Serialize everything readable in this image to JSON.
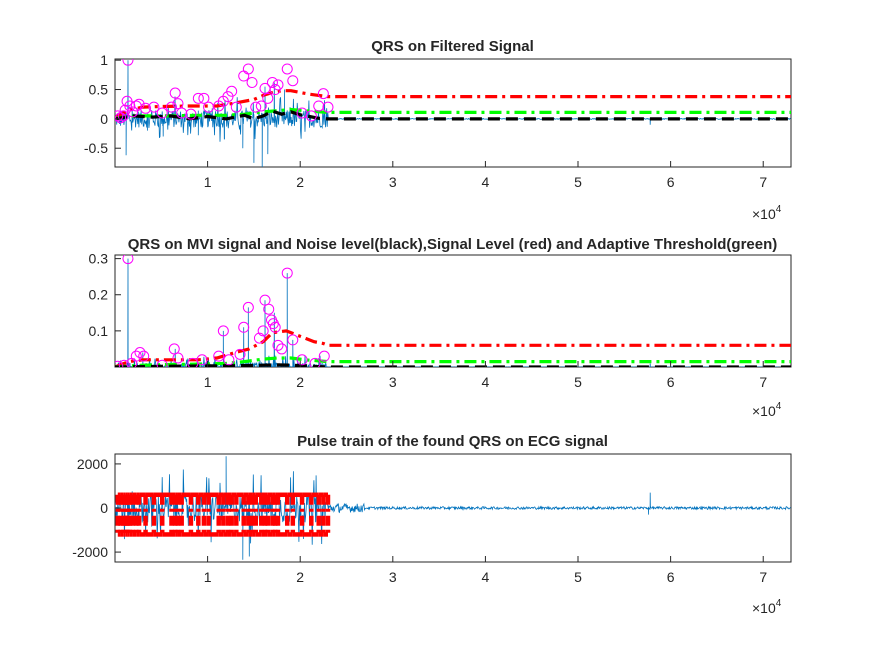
{
  "chart_data": [
    {
      "type": "line",
      "title": "QRS on Filtered Signal",
      "xlim": [
        0,
        73000
      ],
      "ylim": [
        -0.82,
        1.02
      ],
      "x_ticks": [
        1,
        2,
        3,
        4,
        5,
        6,
        7
      ],
      "x_tick_labels": [
        "1",
        "2",
        "3",
        "4",
        "5",
        "6",
        "7"
      ],
      "x_multiplier": {
        "base": "×10",
        "exponent": "4"
      },
      "y_ticks": [
        -0.5,
        0,
        0.5,
        1
      ],
      "y_tick_labels": [
        "-0.5",
        "0",
        "0.5",
        "1"
      ],
      "grid": false,
      "signal": {
        "color": "#0072BD",
        "active_range": [
          0,
          23000
        ],
        "amplitude": 0.25,
        "baseline": 0.0,
        "spikes": [
          [
            1200,
            -0.62
          ],
          [
            1400,
            1.0
          ],
          [
            3500,
            -0.2
          ],
          [
            5200,
            -0.3
          ],
          [
            9000,
            -0.28
          ],
          [
            11800,
            -0.35
          ],
          [
            13800,
            -0.5
          ],
          [
            15000,
            -0.75
          ],
          [
            15900,
            -0.82
          ],
          [
            16200,
            0.55
          ],
          [
            16500,
            -0.6
          ],
          [
            17200,
            0.62
          ],
          [
            18300,
            0.5
          ],
          [
            21000,
            -0.15
          ],
          [
            57800,
            -0.1
          ]
        ]
      },
      "markers": {
        "color": "#FF00FF",
        "shape": "circle",
        "points": [
          [
            300,
            0.05
          ],
          [
            600,
            0.02
          ],
          [
            900,
            0.05
          ],
          [
            1100,
            0.15
          ],
          [
            1300,
            0.3
          ],
          [
            1400,
            1.0
          ],
          [
            1600,
            0.22
          ],
          [
            1900,
            0.12
          ],
          [
            2300,
            0.22
          ],
          [
            2600,
            0.25
          ],
          [
            3300,
            0.18
          ],
          [
            4200,
            0.2
          ],
          [
            5100,
            0.1
          ],
          [
            6100,
            0.2
          ],
          [
            6500,
            0.44
          ],
          [
            6800,
            0.26
          ],
          [
            7200,
            0.1
          ],
          [
            8200,
            0.08
          ],
          [
            9000,
            0.35
          ],
          [
            9600,
            0.35
          ],
          [
            10100,
            0.2
          ],
          [
            11200,
            0.22
          ],
          [
            11700,
            0.3
          ],
          [
            12200,
            0.38
          ],
          [
            12600,
            0.47
          ],
          [
            13100,
            0.2
          ],
          [
            13900,
            0.73
          ],
          [
            14400,
            0.85
          ],
          [
            14800,
            0.62
          ],
          [
            15200,
            0.2
          ],
          [
            15800,
            0.22
          ],
          [
            16200,
            0.52
          ],
          [
            16500,
            0.35
          ],
          [
            17000,
            0.62
          ],
          [
            17300,
            0.5
          ],
          [
            17600,
            0.58
          ],
          [
            18600,
            0.85
          ],
          [
            19200,
            0.65
          ],
          [
            20200,
            0.1
          ],
          [
            21200,
            0.05
          ],
          [
            22000,
            0.22
          ],
          [
            22500,
            0.43
          ],
          [
            23000,
            0.2
          ]
        ]
      },
      "series": [
        {
          "name": "",
          "color": "#FF0000",
          "style": "dash-dot",
          "x": [
            0,
            1500,
            3000,
            5000,
            8000,
            11000,
            13000,
            15000,
            16000,
            17000,
            18000,
            19000,
            20000,
            21000,
            22000,
            23000,
            73000
          ],
          "y": [
            0.02,
            0.15,
            0.2,
            0.21,
            0.22,
            0.22,
            0.27,
            0.33,
            0.4,
            0.45,
            0.48,
            0.48,
            0.45,
            0.42,
            0.4,
            0.38,
            0.38
          ]
        },
        {
          "name": "",
          "color": "#00FF00",
          "style": "dash-dot",
          "x": [
            0,
            1500,
            3000,
            6000,
            9000,
            12000,
            14000,
            16000,
            17500,
            19000,
            20500,
            22000,
            23000,
            73000
          ],
          "y": [
            0.01,
            0.04,
            0.05,
            0.05,
            0.06,
            0.06,
            0.08,
            0.12,
            0.14,
            0.16,
            0.14,
            0.12,
            0.11,
            0.11
          ]
        },
        {
          "name": "",
          "color": "#000000",
          "style": "dashed",
          "x": [
            0,
            2000,
            4000,
            6000,
            8000,
            10000,
            12000,
            14000,
            15000,
            16000,
            17000,
            18000,
            19000,
            20000,
            21000,
            22000,
            23000,
            73000
          ],
          "y": [
            0.0,
            0.05,
            0.03,
            0.05,
            0.0,
            0.04,
            0.0,
            0.06,
            0.0,
            0.05,
            0.13,
            0.08,
            0.12,
            0.07,
            0.04,
            0.01,
            0.0,
            0.0
          ]
        }
      ]
    },
    {
      "type": "line",
      "title": "QRS on MVI signal and Noise level(black),Signal Level (red) and Adaptive Threshold(green)",
      "xlim": [
        0,
        73000
      ],
      "ylim": [
        0,
        0.31
      ],
      "x_ticks": [
        1,
        2,
        3,
        4,
        5,
        6,
        7
      ],
      "x_tick_labels": [
        "1",
        "2",
        "3",
        "4",
        "5",
        "6",
        "7"
      ],
      "x_multiplier": {
        "base": "×10",
        "exponent": "4"
      },
      "y_ticks": [
        0.1,
        0.2,
        0.3
      ],
      "y_tick_labels": [
        "0.1",
        "0.2",
        "0.3"
      ],
      "grid": false,
      "signal": {
        "color": "#0072BD",
        "active_range": [
          0,
          23000
        ],
        "amplitude": 0.02,
        "baseline": 0.0,
        "spikes": [
          [
            1400,
            0.3
          ],
          [
            3000,
            0.04
          ],
          [
            6500,
            0.05
          ],
          [
            11700,
            0.1
          ],
          [
            13900,
            0.11
          ],
          [
            14400,
            0.165
          ],
          [
            16200,
            0.185
          ],
          [
            17200,
            0.15
          ],
          [
            18600,
            0.26
          ],
          [
            19200,
            0.075
          ],
          [
            57800,
            0.01
          ]
        ]
      },
      "markers": {
        "color": "#FF00FF",
        "shape": "circle",
        "points": [
          [
            300,
            0.002
          ],
          [
            1000,
            0.005
          ],
          [
            1400,
            0.3
          ],
          [
            1800,
            0.01
          ],
          [
            2300,
            0.03
          ],
          [
            2700,
            0.04
          ],
          [
            3100,
            0.03
          ],
          [
            5100,
            0.005
          ],
          [
            6400,
            0.05
          ],
          [
            6800,
            0.025
          ],
          [
            8400,
            0.01
          ],
          [
            9400,
            0.02
          ],
          [
            11200,
            0.03
          ],
          [
            11700,
            0.1
          ],
          [
            12300,
            0.02
          ],
          [
            13500,
            0.035
          ],
          [
            13900,
            0.11
          ],
          [
            14400,
            0.165
          ],
          [
            15600,
            0.08
          ],
          [
            16000,
            0.1
          ],
          [
            16200,
            0.185
          ],
          [
            16600,
            0.16
          ],
          [
            16900,
            0.13
          ],
          [
            17100,
            0.12
          ],
          [
            17300,
            0.11
          ],
          [
            17600,
            0.06
          ],
          [
            18000,
            0.05
          ],
          [
            18600,
            0.26
          ],
          [
            19200,
            0.075
          ],
          [
            20200,
            0.02
          ],
          [
            21600,
            0.01
          ],
          [
            22600,
            0.03
          ]
        ]
      },
      "series": [
        {
          "name": "",
          "color": "#FF0000",
          "style": "dash-dot",
          "x": [
            0,
            1500,
            3000,
            6000,
            9000,
            11000,
            13000,
            14500,
            16000,
            17000,
            18500,
            19500,
            20500,
            21500,
            22500,
            23000,
            73000
          ],
          "y": [
            0.0,
            0.015,
            0.02,
            0.02,
            0.02,
            0.025,
            0.04,
            0.05,
            0.07,
            0.095,
            0.1,
            0.09,
            0.08,
            0.07,
            0.065,
            0.06,
            0.06
          ]
        },
        {
          "name": "",
          "color": "#00FF00",
          "style": "dash-dot",
          "x": [
            0,
            3000,
            6000,
            9000,
            12000,
            14000,
            16000,
            17500,
            19000,
            20500,
            22000,
            23000,
            73000
          ],
          "y": [
            0.0,
            0.005,
            0.007,
            0.008,
            0.01,
            0.015,
            0.022,
            0.025,
            0.025,
            0.02,
            0.017,
            0.015,
            0.015
          ]
        },
        {
          "name": "",
          "color": "#000000",
          "style": "dashed",
          "x": [
            0,
            5000,
            10000,
            14000,
            16000,
            17500,
            19000,
            20500,
            22000,
            23000,
            73000
          ],
          "y": [
            0.0,
            0.002,
            0.003,
            0.004,
            0.005,
            0.006,
            0.005,
            0.003,
            0.001,
            0.0,
            0.0
          ]
        }
      ]
    },
    {
      "type": "line",
      "title": "Pulse train of the found QRS on ECG signal",
      "xlim": [
        0,
        73000
      ],
      "ylim": [
        -2450,
        2450
      ],
      "x_ticks": [
        1,
        2,
        3,
        4,
        5,
        6,
        7
      ],
      "x_tick_labels": [
        "1",
        "2",
        "3",
        "4",
        "5",
        "6",
        "7"
      ],
      "x_multiplier": {
        "base": "×10",
        "exponent": "4"
      },
      "y_ticks": [
        -2000,
        0,
        2000
      ],
      "y_tick_labels": [
        "-2000",
        "0",
        "2000"
      ],
      "grid": false,
      "signal": {
        "color": "#0072BD",
        "active_range": [
          0,
          23000
        ],
        "amplitude": 1100,
        "baseline": 0,
        "tail_noise": [
          [
            23000,
            27000,
            200
          ],
          [
            27000,
            73000,
            60
          ]
        ],
        "spikes": [
          [
            12000,
            2350
          ],
          [
            13800,
            -2350
          ],
          [
            14500,
            -2200
          ],
          [
            57800,
            700
          ],
          [
            57600,
            -300
          ]
        ]
      },
      "pulse_train": {
        "color": "#FF0000",
        "style": "dash-dot",
        "top": 600,
        "bottom": -1200,
        "x": [
          300,
          600,
          900,
          1100,
          1300,
          1400,
          1600,
          1900,
          2300,
          2600,
          3300,
          4200,
          5100,
          6100,
          6500,
          6800,
          7200,
          8200,
          9000,
          9600,
          10100,
          11200,
          11700,
          12200,
          12600,
          13100,
          13900,
          14400,
          14800,
          15200,
          15800,
          16200,
          16500,
          17000,
          17300,
          17600,
          18600,
          19200,
          20200,
          21200,
          22000,
          22500,
          23000
        ]
      }
    }
  ]
}
